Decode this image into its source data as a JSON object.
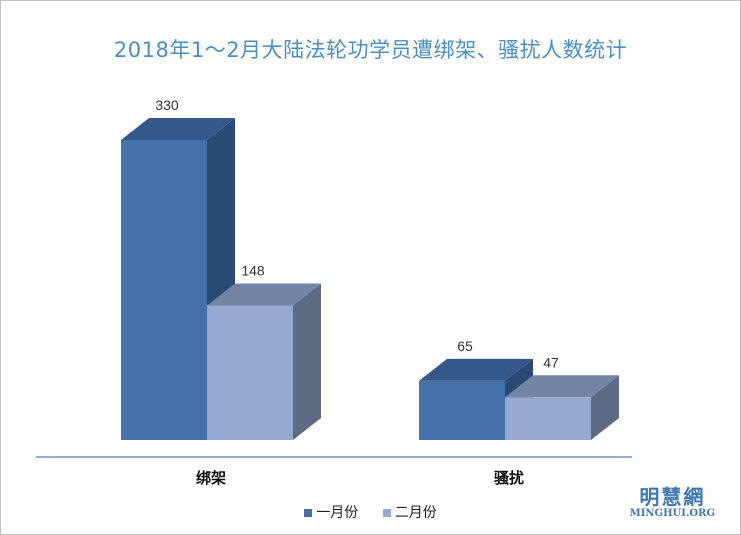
{
  "chart_data": {
    "type": "bar",
    "title": "2018年1～2月大陆法轮功学员遭绑架、骚扰人数统计",
    "categories": [
      "绑架",
      "骚扰"
    ],
    "series": [
      {
        "name": "一月份",
        "values": [
          330,
          65
        ],
        "color": "#4472a8",
        "side_color": "#2b4a73",
        "top_color": "#34588a"
      },
      {
        "name": "二月份",
        "values": [
          148,
          47
        ],
        "color": "#96a9d1",
        "side_color": "#5d6a82",
        "top_color": "#7385a5"
      }
    ],
    "ylim": [
      0,
      340
    ],
    "grid": false,
    "legend_position": "bottom"
  },
  "watermark": {
    "cn": "明慧網",
    "en": "MINGHUI.ORG"
  }
}
